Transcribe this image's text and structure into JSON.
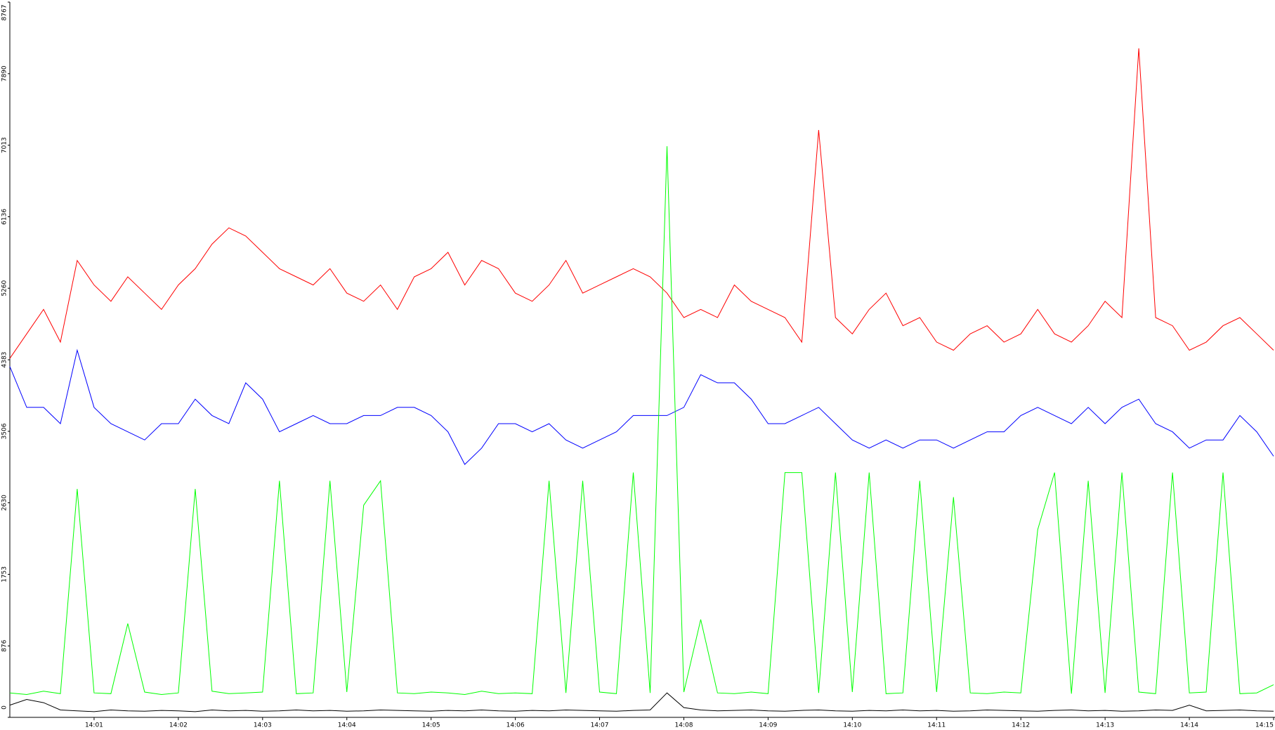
{
  "chart_data": {
    "type": "line",
    "x": [
      0,
      0.2,
      0.4,
      0.6,
      0.8,
      1,
      1.2,
      1.4,
      1.6,
      1.8,
      2,
      2.2,
      2.4,
      2.6,
      2.8,
      3,
      3.2,
      3.4,
      3.6,
      3.8,
      4,
      4.2,
      4.4,
      4.6,
      4.8,
      5,
      5.2,
      5.4,
      5.6,
      5.8,
      6,
      6.2,
      6.4,
      6.6,
      6.8,
      7,
      7.2,
      7.4,
      7.6,
      7.8,
      8,
      8.2,
      8.4,
      8.6,
      8.8,
      9,
      9.2,
      9.4,
      9.6,
      9.8,
      10,
      10.2,
      10.4,
      10.6,
      10.8,
      11,
      11.2,
      11.4,
      11.6,
      11.8,
      12,
      12.2,
      12.4,
      12.6,
      12.8,
      13,
      13.2,
      13.4,
      13.6,
      13.8,
      14,
      14.2,
      14.4,
      14.6,
      14.8,
      15
    ],
    "series": [
      {
        "name": "red",
        "color": "#ff0000",
        "values": [
          4400,
          4700,
          5000,
          4600,
          5600,
          5300,
          5100,
          5400,
          5200,
          5000,
          5300,
          5500,
          5800,
          6000,
          5900,
          5700,
          5500,
          5400,
          5300,
          5500,
          5200,
          5100,
          5300,
          5000,
          5400,
          5500,
          5700,
          5300,
          5600,
          5500,
          5200,
          5100,
          5300,
          5600,
          5200,
          5300,
          5400,
          5500,
          5400,
          5200,
          4900,
          5000,
          4900,
          5300,
          5100,
          5000,
          4900,
          4600,
          7200,
          4900,
          4700,
          5000,
          5200,
          4800,
          4900,
          4600,
          4500,
          4700,
          4800,
          4600,
          4700,
          5000,
          4700,
          4600,
          4800,
          5100,
          4900,
          8200,
          4900,
          4800,
          4500,
          4600,
          4800,
          4900,
          4700,
          4500
        ]
      },
      {
        "name": "blue",
        "color": "#0000ff",
        "values": [
          4300,
          3800,
          3800,
          3600,
          4500,
          3800,
          3600,
          3500,
          3400,
          3600,
          3600,
          3900,
          3700,
          3600,
          4100,
          3900,
          3500,
          3600,
          3700,
          3600,
          3600,
          3700,
          3700,
          3800,
          3800,
          3700,
          3500,
          3100,
          3300,
          3600,
          3600,
          3500,
          3600,
          3400,
          3300,
          3400,
          3500,
          3700,
          3700,
          3700,
          3800,
          4200,
          4100,
          4100,
          3900,
          3600,
          3600,
          3700,
          3800,
          3600,
          3400,
          3300,
          3400,
          3300,
          3400,
          3400,
          3300,
          3400,
          3500,
          3500,
          3700,
          3800,
          3700,
          3600,
          3800,
          3600,
          3800,
          3900,
          3600,
          3500,
          3300,
          3400,
          3400,
          3700,
          3500,
          3200
        ]
      },
      {
        "name": "green",
        "color": "#00ff00",
        "values": [
          300,
          280,
          320,
          290,
          2800,
          300,
          290,
          1150,
          310,
          280,
          300,
          2800,
          320,
          290,
          300,
          310,
          2900,
          290,
          300,
          2900,
          310,
          2600,
          2900,
          300,
          290,
          310,
          300,
          280,
          320,
          290,
          300,
          290,
          2900,
          300,
          2900,
          310,
          290,
          3000,
          300,
          7000,
          310,
          1200,
          300,
          290,
          310,
          290,
          3000,
          3000,
          300,
          3000,
          310,
          3000,
          290,
          300,
          2900,
          310,
          2700,
          300,
          290,
          310,
          300,
          2300,
          3000,
          290,
          2900,
          300,
          3000,
          310,
          290,
          3000,
          300,
          310,
          3000,
          290,
          300,
          400
        ]
      },
      {
        "name": "black",
        "color": "#000000",
        "values": [
          150,
          220,
          180,
          90,
          80,
          70,
          90,
          80,
          75,
          85,
          80,
          70,
          90,
          80,
          85,
          75,
          80,
          90,
          80,
          85,
          75,
          80,
          90,
          85,
          80,
          75,
          85,
          80,
          90,
          80,
          75,
          85,
          80,
          90,
          85,
          80,
          75,
          85,
          90,
          300,
          120,
          90,
          80,
          85,
          90,
          80,
          75,
          85,
          90,
          80,
          75,
          85,
          80,
          90,
          80,
          85,
          75,
          80,
          90,
          85,
          80,
          75,
          85,
          90,
          80,
          85,
          75,
          80,
          90,
          85,
          150,
          80,
          85,
          90,
          80,
          75
        ]
      }
    ],
    "xlim": [
      0,
      15
    ],
    "ylim": [
      0,
      8767
    ],
    "xticks": [
      {
        "value": 1,
        "label": "14:01"
      },
      {
        "value": 2,
        "label": "14:02"
      },
      {
        "value": 3,
        "label": "14:03"
      },
      {
        "value": 4,
        "label": "14:04"
      },
      {
        "value": 5,
        "label": "14:05"
      },
      {
        "value": 6,
        "label": "14:06"
      },
      {
        "value": 7,
        "label": "14:07"
      },
      {
        "value": 8,
        "label": "14:08"
      },
      {
        "value": 9,
        "label": "14:09"
      },
      {
        "value": 10,
        "label": "14:10"
      },
      {
        "value": 11,
        "label": "14:11"
      },
      {
        "value": 12,
        "label": "14:12"
      },
      {
        "value": 13,
        "label": "14:13"
      },
      {
        "value": 14,
        "label": "14:14"
      },
      {
        "value": 15,
        "label": "14:15"
      }
    ],
    "yticks": [
      0,
      876,
      1753,
      2630,
      3506,
      4383,
      5260,
      6136,
      7013,
      7890,
      8767
    ]
  }
}
